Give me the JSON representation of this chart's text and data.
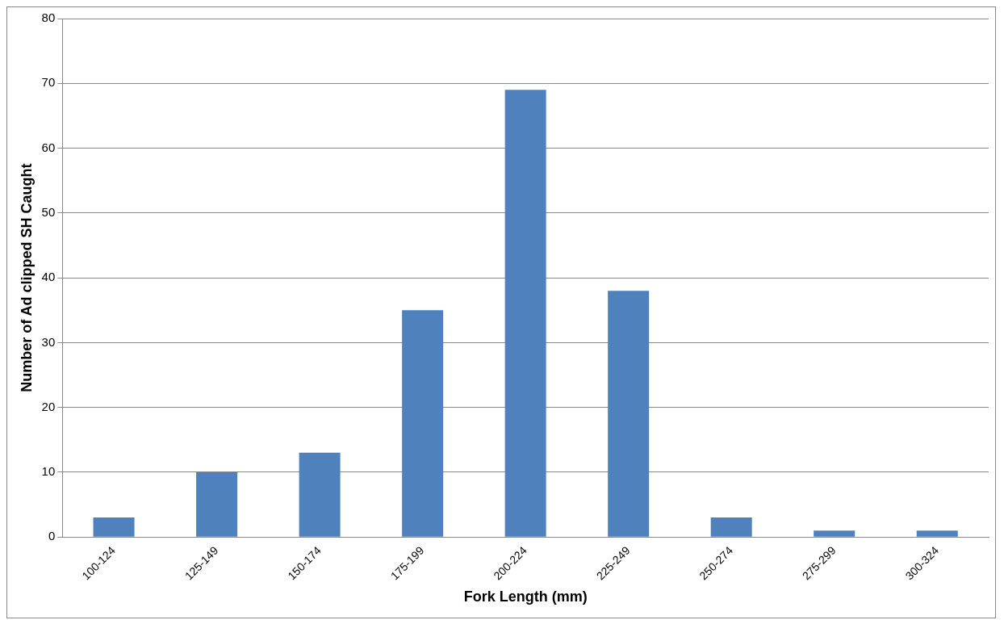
{
  "chart_data": {
    "type": "bar",
    "xlabel": "Fork Length (mm)",
    "ylabel": "Number of Ad clipped SH Caught",
    "categories": [
      "100-124",
      "125-149",
      "150-174",
      "175-199",
      "200-224",
      "225-249",
      "250-274",
      "275-299",
      "300-324"
    ],
    "values": [
      3,
      10,
      13,
      35,
      69,
      38,
      3,
      1,
      1
    ],
    "color": "#4f81bd",
    "ylim": [
      0,
      80
    ],
    "yticks": [
      0,
      10,
      20,
      30,
      40,
      50,
      60,
      70,
      80
    ],
    "grid": "y",
    "legend": false
  }
}
